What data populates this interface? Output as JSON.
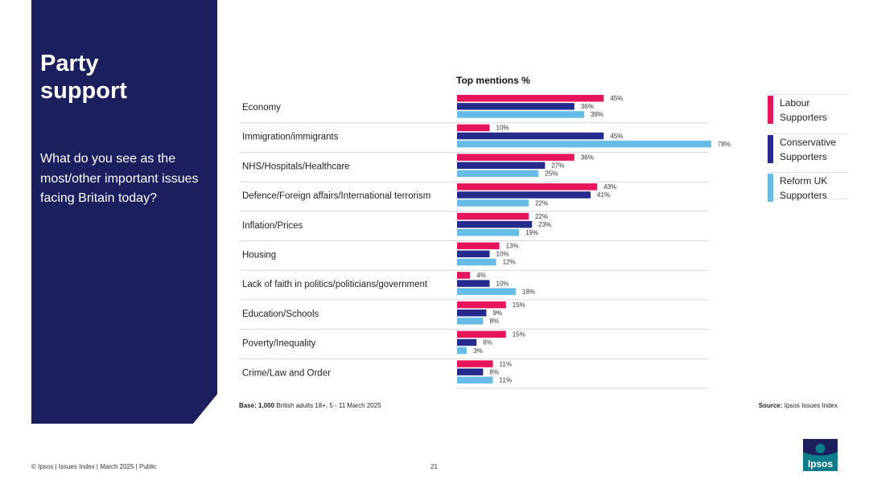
{
  "panel": {
    "title": "Party\nsupport",
    "question": "What do you see as the most/other important issues facing Britain today?"
  },
  "chart_data": {
    "type": "bar",
    "orientation": "horizontal",
    "title": "Top mentions %",
    "unit": "%",
    "categories": [
      "Economy",
      "Immigration/immigrants",
      "NHS/Hospitals/Healthcare",
      "Defence/Foreign affairs/International terrorism",
      "Inflation/Prices",
      "Housing",
      "Lack of faith in politics/politicians/government",
      "Education/Schools",
      "Poverty/Inequality",
      "Crime/Law and Order"
    ],
    "series": [
      {
        "name": "Labour Supporters",
        "color": "#e6145a",
        "values": [
          45,
          10,
          36,
          43,
          22,
          13,
          4,
          15,
          15,
          11
        ]
      },
      {
        "name": "Conservative Supporters",
        "color": "#242b8c",
        "values": [
          36,
          45,
          27,
          41,
          23,
          10,
          10,
          9,
          6,
          8
        ]
      },
      {
        "name": "Reform UK Supporters",
        "color": "#66bce6",
        "values": [
          39,
          78,
          25,
          22,
          19,
          12,
          18,
          8,
          3,
          11
        ]
      }
    ],
    "xlim": [
      0,
      78
    ],
    "legend_position": "right"
  },
  "legend": [
    "Labour\nSupporters",
    "Conservative\nSupporters",
    "Reform UK\nSupporters"
  ],
  "base": {
    "label": "Base:",
    "value": "1,000",
    "text": " British adults 18+, 5 - 11 March 2025"
  },
  "source": {
    "label": "Source:",
    "text": " Ipsos Issues Index"
  },
  "footer": {
    "left": "© Ipsos | Issues Index | March 2025 | Public",
    "page": "21"
  },
  "logo_text": "Ipsos"
}
